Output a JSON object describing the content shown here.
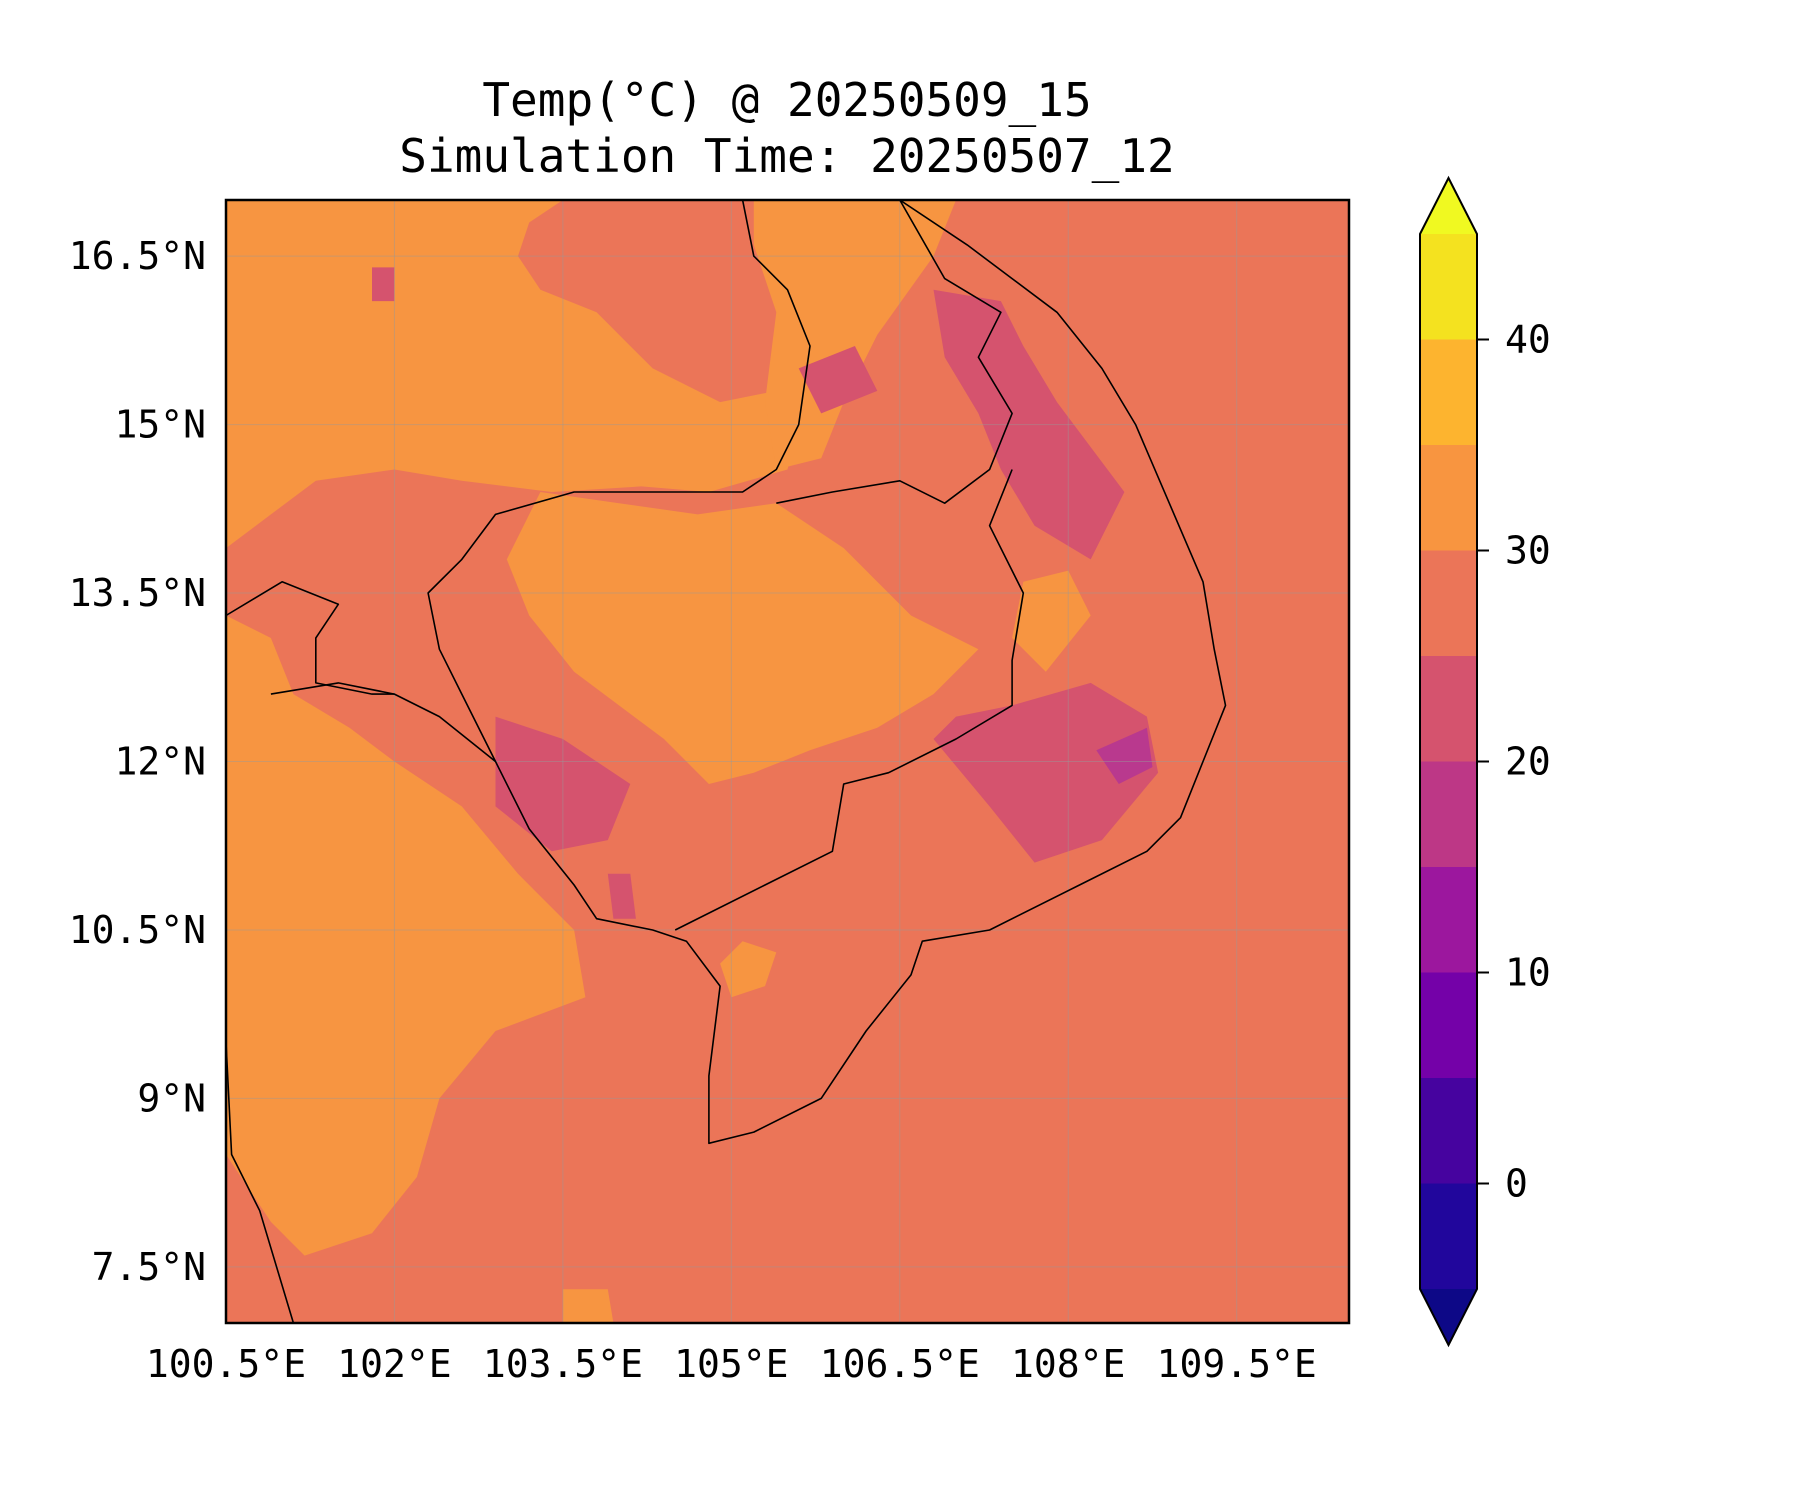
{
  "figure": {
    "title_line1": "Temp(°C) @ 20250509_15",
    "title_line2": "Simulation Time: 20250507_12"
  },
  "map": {
    "lon_range": [
      100.5,
      110.5
    ],
    "lat_range": [
      7.0,
      17.0
    ],
    "gridlines": true,
    "lon_ticks": [
      {
        "value": 100.5,
        "label": "100.5°E"
      },
      {
        "value": 102.0,
        "label": "102°E"
      },
      {
        "value": 103.5,
        "label": "103.5°E"
      },
      {
        "value": 105.0,
        "label": "105°E"
      },
      {
        "value": 106.5,
        "label": "106.5°E"
      },
      {
        "value": 108.0,
        "label": "108°E"
      },
      {
        "value": 109.5,
        "label": "109.5°E"
      }
    ],
    "lat_ticks": [
      {
        "value": 16.5,
        "label": "16.5°N"
      },
      {
        "value": 15.0,
        "label": "15°N"
      },
      {
        "value": 13.5,
        "label": "13.5°N"
      },
      {
        "value": 12.0,
        "label": "12°N"
      },
      {
        "value": 10.5,
        "label": "10.5°N"
      },
      {
        "value": 9.0,
        "label": "9°N"
      },
      {
        "value": 7.5,
        "label": "7.5°N"
      }
    ],
    "background_color": "#eb7558",
    "regions": [
      {
        "level": 30,
        "color": "#f79541",
        "points": [
          [
            100.5,
            17.0
          ],
          [
            103.5,
            17.0
          ],
          [
            103.2,
            16.8
          ],
          [
            103.1,
            16.5
          ],
          [
            103.3,
            16.2
          ],
          [
            103.8,
            16.0
          ],
          [
            104.3,
            15.5
          ],
          [
            104.9,
            15.2
          ],
          [
            105.4,
            15.3
          ],
          [
            105.6,
            15.0
          ],
          [
            105.5,
            14.6
          ],
          [
            104.8,
            14.4
          ],
          [
            104.2,
            14.45
          ],
          [
            103.4,
            14.4
          ],
          [
            102.6,
            14.5
          ],
          [
            102.0,
            14.6
          ],
          [
            101.3,
            14.5
          ],
          [
            100.9,
            14.2
          ],
          [
            100.5,
            13.9
          ]
        ]
      },
      {
        "level": 30,
        "color": "#f79541",
        "points": [
          [
            105.2,
            17.0
          ],
          [
            107.0,
            17.0
          ],
          [
            106.8,
            16.5
          ],
          [
            106.3,
            15.8
          ],
          [
            106.0,
            15.2
          ],
          [
            105.8,
            14.7
          ],
          [
            105.4,
            14.6
          ],
          [
            105.3,
            15.2
          ],
          [
            105.4,
            16.0
          ],
          [
            105.2,
            16.6
          ]
        ]
      },
      {
        "level": 30,
        "color": "#f79541",
        "points": [
          [
            103.3,
            14.4
          ],
          [
            104.0,
            14.3
          ],
          [
            104.7,
            14.2
          ],
          [
            105.4,
            14.3
          ],
          [
            106.0,
            13.9
          ],
          [
            106.6,
            13.3
          ],
          [
            107.2,
            13.0
          ],
          [
            106.8,
            12.6
          ],
          [
            106.3,
            12.3
          ],
          [
            105.7,
            12.1
          ],
          [
            105.2,
            11.9
          ],
          [
            104.8,
            11.8
          ],
          [
            104.4,
            12.2
          ],
          [
            104.0,
            12.5
          ],
          [
            103.6,
            12.8
          ],
          [
            103.2,
            13.3
          ],
          [
            103.0,
            13.8
          ]
        ]
      },
      {
        "level": 30,
        "color": "#f79541",
        "points": [
          [
            100.5,
            13.3
          ],
          [
            100.9,
            13.1
          ],
          [
            101.1,
            12.6
          ],
          [
            101.6,
            12.3
          ],
          [
            102.0,
            12.0
          ],
          [
            102.6,
            11.6
          ],
          [
            103.1,
            11.0
          ],
          [
            103.6,
            10.5
          ],
          [
            103.7,
            9.9
          ],
          [
            102.9,
            9.6
          ],
          [
            102.4,
            9.0
          ],
          [
            102.2,
            8.3
          ],
          [
            101.8,
            7.8
          ],
          [
            101.2,
            7.6
          ],
          [
            100.9,
            7.9
          ],
          [
            100.5,
            8.5
          ]
        ]
      },
      {
        "level": 30,
        "color": "#f79541",
        "points": [
          [
            103.5,
            7.0
          ],
          [
            103.95,
            7.0
          ],
          [
            103.9,
            7.3
          ],
          [
            103.5,
            7.3
          ]
        ]
      },
      {
        "level": 30,
        "color": "#f79541",
        "points": [
          [
            105.0,
            9.9
          ],
          [
            105.3,
            10.0
          ],
          [
            105.4,
            10.3
          ],
          [
            105.1,
            10.4
          ],
          [
            104.9,
            10.2
          ]
        ]
      },
      {
        "level": 30,
        "color": "#f79541",
        "points": [
          [
            107.6,
            13.6
          ],
          [
            108.0,
            13.7
          ],
          [
            108.2,
            13.3
          ],
          [
            107.8,
            12.8
          ],
          [
            107.5,
            13.1
          ]
        ]
      },
      {
        "level": 25,
        "color": "#d5536e",
        "points": [
          [
            106.8,
            16.2
          ],
          [
            107.4,
            16.1
          ],
          [
            107.6,
            15.7
          ],
          [
            107.9,
            15.2
          ],
          [
            108.2,
            14.8
          ],
          [
            108.5,
            14.4
          ],
          [
            108.2,
            13.8
          ],
          [
            107.7,
            14.1
          ],
          [
            107.4,
            14.6
          ],
          [
            107.2,
            15.1
          ],
          [
            106.9,
            15.6
          ]
        ]
      },
      {
        "level": 25,
        "color": "#d5536e",
        "points": [
          [
            102.9,
            12.4
          ],
          [
            103.5,
            12.2
          ],
          [
            104.1,
            11.8
          ],
          [
            103.9,
            11.3
          ],
          [
            103.4,
            11.2
          ],
          [
            102.9,
            11.6
          ]
        ]
      },
      {
        "level": 25,
        "color": "#d5536e",
        "points": [
          [
            106.8,
            12.2
          ],
          [
            107.3,
            11.6
          ],
          [
            107.7,
            11.1
          ],
          [
            108.3,
            11.3
          ],
          [
            108.8,
            11.9
          ],
          [
            108.7,
            12.4
          ],
          [
            108.2,
            12.7
          ],
          [
            107.5,
            12.5
          ],
          [
            107.0,
            12.4
          ]
        ]
      },
      {
        "level": 25,
        "color": "#d5536e",
        "points": [
          [
            105.6,
            15.5
          ],
          [
            106.1,
            15.7
          ],
          [
            106.3,
            15.3
          ],
          [
            105.8,
            15.1
          ]
        ]
      },
      {
        "level": 25,
        "color": "#d5536e",
        "points": [
          [
            103.9,
            11.0
          ],
          [
            104.1,
            11.0
          ],
          [
            104.15,
            10.6
          ],
          [
            103.95,
            10.6
          ]
        ]
      },
      {
        "level": 25,
        "color": "#d5536e",
        "points": [
          [
            101.8,
            16.4
          ],
          [
            102.0,
            16.4
          ],
          [
            102.0,
            16.1
          ],
          [
            101.8,
            16.1
          ]
        ]
      },
      {
        "level": 20,
        "color": "#b9398e",
        "points": [
          [
            108.25,
            12.1
          ],
          [
            108.7,
            12.3
          ],
          [
            108.75,
            11.95
          ],
          [
            108.45,
            11.8
          ]
        ]
      }
    ],
    "coastline": [
      [
        [
          106.5,
          17.0
        ],
        [
          107.1,
          16.6
        ],
        [
          107.5,
          16.3
        ],
        [
          107.9,
          16.0
        ],
        [
          108.3,
          15.5
        ],
        [
          108.6,
          15.0
        ],
        [
          108.9,
          14.3
        ],
        [
          109.2,
          13.6
        ],
        [
          109.3,
          13.0
        ],
        [
          109.4,
          12.5
        ],
        [
          109.2,
          12.0
        ],
        [
          109.0,
          11.5
        ],
        [
          108.7,
          11.2
        ],
        [
          108.1,
          10.9
        ],
        [
          107.3,
          10.5
        ],
        [
          106.7,
          10.4
        ],
        [
          106.6,
          10.1
        ],
        [
          106.2,
          9.6
        ],
        [
          105.8,
          9.0
        ],
        [
          105.2,
          8.7
        ],
        [
          104.8,
          8.6
        ],
        [
          104.8,
          9.2
        ],
        [
          104.9,
          10.0
        ],
        [
          104.6,
          10.4
        ],
        [
          104.3,
          10.5
        ],
        [
          103.8,
          10.6
        ],
        [
          103.6,
          10.9
        ],
        [
          103.2,
          11.4
        ],
        [
          102.9,
          12.0
        ],
        [
          102.4,
          12.4
        ],
        [
          102.0,
          12.6
        ],
        [
          101.5,
          12.7
        ],
        [
          100.9,
          12.6
        ]
      ],
      [
        [
          100.5,
          9.5
        ],
        [
          100.55,
          8.5
        ],
        [
          100.8,
          8.0
        ],
        [
          101.1,
          7.0
        ]
      ]
    ],
    "borders": [
      [
        [
          105.1,
          17.0
        ],
        [
          105.2,
          16.5
        ],
        [
          105.5,
          16.2
        ],
        [
          105.7,
          15.7
        ],
        [
          105.6,
          15.0
        ],
        [
          105.4,
          14.6
        ],
        [
          105.1,
          14.4
        ],
        [
          104.4,
          14.4
        ],
        [
          103.6,
          14.4
        ],
        [
          102.9,
          14.2
        ],
        [
          102.6,
          13.8
        ],
        [
          102.3,
          13.5
        ],
        [
          102.4,
          13.0
        ],
        [
          102.6,
          12.6
        ],
        [
          102.9,
          12.0
        ]
      ],
      [
        [
          105.4,
          14.3
        ],
        [
          105.9,
          14.4
        ],
        [
          106.5,
          14.5
        ],
        [
          106.9,
          14.3
        ],
        [
          107.3,
          14.6
        ],
        [
          107.5,
          15.1
        ],
        [
          107.2,
          15.6
        ],
        [
          107.4,
          16.0
        ],
        [
          106.9,
          16.3
        ],
        [
          106.5,
          17.0
        ]
      ],
      [
        [
          107.5,
          14.6
        ],
        [
          107.3,
          14.1
        ],
        [
          107.6,
          13.5
        ],
        [
          107.5,
          12.9
        ],
        [
          107.5,
          12.5
        ],
        [
          107.0,
          12.2
        ],
        [
          106.4,
          11.9
        ],
        [
          106.0,
          11.8
        ],
        [
          105.9,
          11.2
        ],
        [
          105.3,
          10.9
        ],
        [
          104.5,
          10.5
        ]
      ],
      [
        [
          100.5,
          13.3
        ],
        [
          101.0,
          13.6
        ],
        [
          101.5,
          13.4
        ],
        [
          101.3,
          13.1
        ],
        [
          101.3,
          12.7
        ],
        [
          101.8,
          12.6
        ],
        [
          102.0,
          12.6
        ]
      ]
    ]
  },
  "colorbar": {
    "ticks": [
      {
        "value": 0,
        "label": "0"
      },
      {
        "value": 10,
        "label": "10"
      },
      {
        "value": 20,
        "label": "20"
      },
      {
        "value": 30,
        "label": "30"
      },
      {
        "value": 40,
        "label": "40"
      }
    ],
    "bins": [
      {
        "from": -5,
        "to": 0,
        "color": "#21069c"
      },
      {
        "from": 0,
        "to": 5,
        "color": "#46039f"
      },
      {
        "from": 5,
        "to": 10,
        "color": "#7401a8"
      },
      {
        "from": 10,
        "to": 15,
        "color": "#9c179e"
      },
      {
        "from": 15,
        "to": 20,
        "color": "#bd3786"
      },
      {
        "from": 20,
        "to": 25,
        "color": "#d5536e"
      },
      {
        "from": 25,
        "to": 30,
        "color": "#eb7558"
      },
      {
        "from": 30,
        "to": 35,
        "color": "#f89540"
      },
      {
        "from": 35,
        "to": 40,
        "color": "#fdb42f"
      },
      {
        "from": 40,
        "to": 45,
        "color": "#f4e21f"
      }
    ],
    "under_color": "#0d0887",
    "over_color": "#f0f921",
    "range": [
      -5,
      45
    ]
  }
}
